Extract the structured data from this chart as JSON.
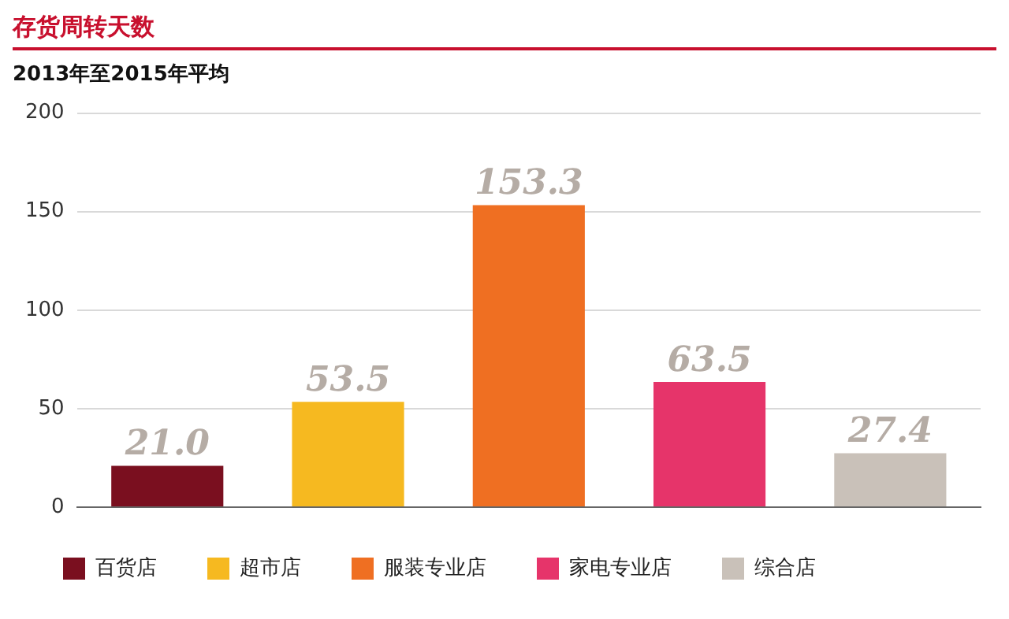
{
  "chart_data": {
    "type": "bar",
    "title": "存货周转天数",
    "subtitle": "2013年至2015年平均",
    "categories": [
      null,
      null,
      null,
      null,
      null
    ],
    "series": [
      {
        "name": "百货店",
        "color": "#7a0f1f",
        "values": [
          21.0,
          null,
          null,
          null,
          null
        ],
        "value_labels": [
          "21.0",
          null,
          null,
          null,
          null
        ]
      },
      {
        "name": "超市店",
        "color": "#f6b920",
        "values": [
          null,
          53.5,
          null,
          null,
          null
        ],
        "value_labels": [
          null,
          "53.5",
          null,
          null,
          null
        ]
      },
      {
        "name": "服装专业店",
        "color": "#ef6f22",
        "values": [
          null,
          null,
          153.3,
          null,
          null
        ],
        "value_labels": [
          null,
          null,
          "153.3",
          null,
          null
        ]
      },
      {
        "name": "家电专业店",
        "color": "#e6346a",
        "values": [
          null,
          null,
          null,
          63.5,
          null
        ],
        "value_labels": [
          null,
          null,
          null,
          "63.5",
          null
        ]
      },
      {
        "name": "综合店",
        "color": "#c9c1b9",
        "values": [
          null,
          null,
          null,
          null,
          27.4
        ],
        "value_labels": [
          null,
          null,
          null,
          null,
          "27.4"
        ]
      }
    ],
    "ylim": [
      0,
      200
    ],
    "yticks": [
      0,
      50,
      100,
      150,
      200
    ],
    "grid": "y",
    "legend": "bottom",
    "tick_labels": "y"
  }
}
